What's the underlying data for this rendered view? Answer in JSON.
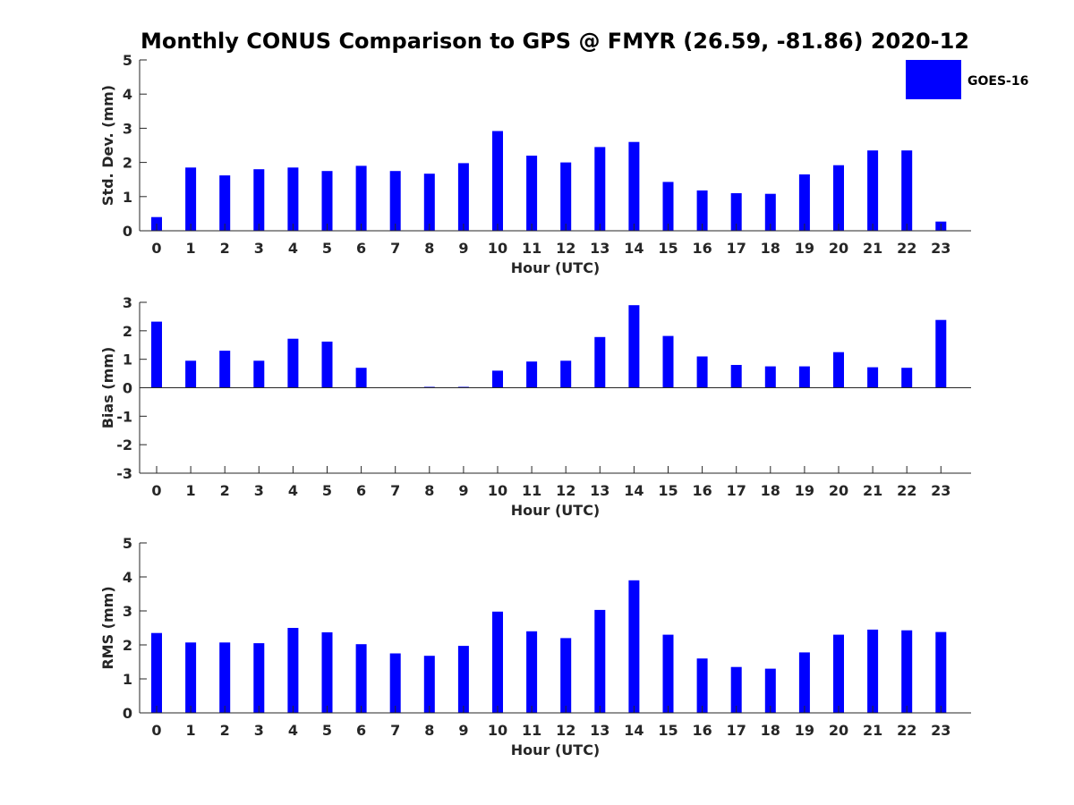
{
  "title": "Monthly CONUS Comparison to GPS @ FMYR (26.59, -81.86) 2020-12",
  "colors": {
    "bar": "#0000ff",
    "axis": "#262626",
    "text": "#262626"
  },
  "legend": {
    "label": "GOES-16",
    "placement": "top-right"
  },
  "chart_data": [
    {
      "type": "bar",
      "title": "Monthly CONUS Comparison to GPS @ FMYR (26.59, -81.86) 2020-12",
      "xlabel": "Hour (UTC)",
      "ylabel": "Std. Dev. (mm)",
      "ylim": [
        0,
        5
      ],
      "yticks": [
        0,
        1,
        2,
        3,
        4,
        5
      ],
      "categories": [
        "0",
        "1",
        "2",
        "3",
        "4",
        "5",
        "6",
        "7",
        "8",
        "9",
        "10",
        "11",
        "12",
        "13",
        "14",
        "15",
        "16",
        "17",
        "18",
        "19",
        "20",
        "21",
        "22",
        "23"
      ],
      "series": [
        {
          "name": "GOES-16",
          "values": [
            0.4,
            1.85,
            1.62,
            1.8,
            1.85,
            1.75,
            1.9,
            1.75,
            1.67,
            1.98,
            2.92,
            2.2,
            2.0,
            2.45,
            2.6,
            1.43,
            1.18,
            1.1,
            1.08,
            1.65,
            1.92,
            2.35,
            2.35,
            0.27
          ]
        }
      ]
    },
    {
      "type": "bar",
      "xlabel": "Hour (UTC)",
      "ylabel": "Bias (mm)",
      "ylim": [
        -3,
        3
      ],
      "yticks": [
        -3,
        -2,
        -1,
        0,
        1,
        2,
        3
      ],
      "categories": [
        "0",
        "1",
        "2",
        "3",
        "4",
        "5",
        "6",
        "7",
        "8",
        "9",
        "10",
        "11",
        "12",
        "13",
        "14",
        "15",
        "16",
        "17",
        "18",
        "19",
        "20",
        "21",
        "22",
        "23"
      ],
      "series": [
        {
          "name": "GOES-16",
          "values": [
            2.32,
            0.95,
            1.3,
            0.95,
            1.72,
            1.62,
            0.7,
            0.0,
            0.03,
            0.03,
            0.6,
            0.92,
            0.95,
            1.78,
            2.9,
            1.82,
            1.1,
            0.8,
            0.75,
            0.75,
            1.25,
            0.72,
            0.7,
            2.38
          ]
        }
      ]
    },
    {
      "type": "bar",
      "xlabel": "Hour (UTC)",
      "ylabel": "RMS (mm)",
      "ylim": [
        0,
        5
      ],
      "yticks": [
        0,
        1,
        2,
        3,
        4,
        5
      ],
      "categories": [
        "0",
        "1",
        "2",
        "3",
        "4",
        "5",
        "6",
        "7",
        "8",
        "9",
        "10",
        "11",
        "12",
        "13",
        "14",
        "15",
        "16",
        "17",
        "18",
        "19",
        "20",
        "21",
        "22",
        "23"
      ],
      "series": [
        {
          "name": "GOES-16",
          "values": [
            2.35,
            2.07,
            2.07,
            2.05,
            2.5,
            2.37,
            2.02,
            1.75,
            1.68,
            1.97,
            2.98,
            2.4,
            2.2,
            3.03,
            3.9,
            2.3,
            1.6,
            1.35,
            1.3,
            1.78,
            2.3,
            2.45,
            2.43,
            2.38
          ]
        }
      ]
    }
  ]
}
